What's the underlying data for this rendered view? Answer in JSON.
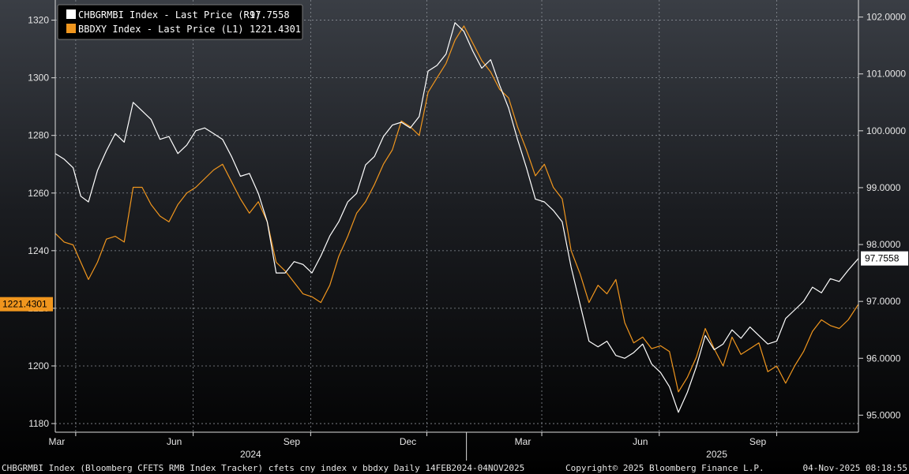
{
  "chart_data": {
    "type": "line",
    "x_range": [
      "2024-02-14",
      "2025-11-04"
    ],
    "x_ticks": [
      {
        "label": "Mar",
        "date": "2024-03-01"
      },
      {
        "label": "Jun",
        "date": "2024-06-01"
      },
      {
        "label": "Sep",
        "date": "2024-09-01"
      },
      {
        "label": "Dec",
        "date": "2024-12-01"
      },
      {
        "label": "Mar",
        "date": "2025-03-01"
      },
      {
        "label": "Jun",
        "date": "2025-06-01"
      },
      {
        "label": "Sep",
        "date": "2025-09-01"
      }
    ],
    "year_labels": [
      {
        "label": "2024",
        "date": "2024-07-16"
      },
      {
        "label": "2025",
        "date": "2025-07-16"
      }
    ],
    "left_axis": {
      "ticks": [
        "1180",
        "1200",
        "1220",
        "1240",
        "1260",
        "1280",
        "1300",
        "1320"
      ],
      "ylim": [
        1177,
        1327
      ]
    },
    "right_axis": {
      "ticks": [
        "95.0000",
        "96.0000",
        "97.0000",
        "98.0000",
        "99.0000",
        "100.0000",
        "101.0000",
        "102.0000"
      ],
      "ylim": [
        94.7,
        102.3
      ]
    },
    "grid": true,
    "legend_position": "top-left",
    "series": [
      {
        "name": "CHBGRMBI Index - Last Price (R1)",
        "last_value": "97.7558",
        "color": "#ffffff",
        "axis": "right",
        "points": [
          [
            "2024-02-14",
            99.6
          ],
          [
            "2024-02-21",
            99.5
          ],
          [
            "2024-02-28",
            99.35
          ],
          [
            "2024-03-05",
            98.85
          ],
          [
            "2024-03-11",
            98.75
          ],
          [
            "2024-03-18",
            99.3
          ],
          [
            "2024-03-25",
            99.65
          ],
          [
            "2024-04-01",
            99.95
          ],
          [
            "2024-04-08",
            99.8
          ],
          [
            "2024-04-15",
            100.5
          ],
          [
            "2024-04-22",
            100.35
          ],
          [
            "2024-04-29",
            100.2
          ],
          [
            "2024-05-06",
            99.85
          ],
          [
            "2024-05-13",
            99.9
          ],
          [
            "2024-05-20",
            99.6
          ],
          [
            "2024-05-27",
            99.75
          ],
          [
            "2024-06-03",
            100.0
          ],
          [
            "2024-06-10",
            100.05
          ],
          [
            "2024-06-17",
            99.95
          ],
          [
            "2024-06-24",
            99.85
          ],
          [
            "2024-07-01",
            99.55
          ],
          [
            "2024-07-08",
            99.2
          ],
          [
            "2024-07-15",
            99.25
          ],
          [
            "2024-07-22",
            98.9
          ],
          [
            "2024-07-29",
            98.4
          ],
          [
            "2024-08-05",
            97.5
          ],
          [
            "2024-08-12",
            97.5
          ],
          [
            "2024-08-19",
            97.7
          ],
          [
            "2024-08-26",
            97.65
          ],
          [
            "2024-09-02",
            97.5
          ],
          [
            "2024-09-09",
            97.8
          ],
          [
            "2024-09-16",
            98.15
          ],
          [
            "2024-09-23",
            98.4
          ],
          [
            "2024-09-30",
            98.75
          ],
          [
            "2024-10-07",
            98.9
          ],
          [
            "2024-10-14",
            99.4
          ],
          [
            "2024-10-21",
            99.55
          ],
          [
            "2024-10-28",
            99.9
          ],
          [
            "2024-11-04",
            100.1
          ],
          [
            "2024-11-11",
            100.15
          ],
          [
            "2024-11-18",
            100.05
          ],
          [
            "2024-11-25",
            100.25
          ],
          [
            "2024-12-02",
            101.05
          ],
          [
            "2024-12-09",
            101.15
          ],
          [
            "2024-12-16",
            101.35
          ],
          [
            "2024-12-23",
            101.9
          ],
          [
            "2024-12-30",
            101.75
          ],
          [
            "2025-01-06",
            101.4
          ],
          [
            "2025-01-13",
            101.1
          ],
          [
            "2025-01-20",
            101.25
          ],
          [
            "2025-01-27",
            100.8
          ],
          [
            "2025-02-03",
            100.4
          ],
          [
            "2025-02-10",
            99.85
          ],
          [
            "2025-02-17",
            99.35
          ],
          [
            "2025-02-24",
            98.8
          ],
          [
            "2025-03-03",
            98.75
          ],
          [
            "2025-03-10",
            98.6
          ],
          [
            "2025-03-17",
            98.4
          ],
          [
            "2025-03-24",
            97.6
          ],
          [
            "2025-03-31",
            96.95
          ],
          [
            "2025-04-07",
            96.3
          ],
          [
            "2025-04-14",
            96.2
          ],
          [
            "2025-04-21",
            96.3
          ],
          [
            "2025-04-28",
            96.05
          ],
          [
            "2025-05-05",
            96.0
          ],
          [
            "2025-05-12",
            96.1
          ],
          [
            "2025-05-19",
            96.25
          ],
          [
            "2025-05-26",
            95.9
          ],
          [
            "2025-06-02",
            95.75
          ],
          [
            "2025-06-09",
            95.5
          ],
          [
            "2025-06-16",
            95.05
          ],
          [
            "2025-06-23",
            95.4
          ],
          [
            "2025-06-30",
            95.85
          ],
          [
            "2025-07-07",
            96.4
          ],
          [
            "2025-07-14",
            96.15
          ],
          [
            "2025-07-21",
            96.25
          ],
          [
            "2025-07-28",
            96.5
          ],
          [
            "2025-08-04",
            96.35
          ],
          [
            "2025-08-11",
            96.55
          ],
          [
            "2025-08-18",
            96.4
          ],
          [
            "2025-08-25",
            96.25
          ],
          [
            "2025-09-01",
            96.3
          ],
          [
            "2025-09-08",
            96.7
          ],
          [
            "2025-09-15",
            96.85
          ],
          [
            "2025-09-22",
            97.0
          ],
          [
            "2025-09-29",
            97.25
          ],
          [
            "2025-10-06",
            97.15
          ],
          [
            "2025-10-13",
            97.4
          ],
          [
            "2025-10-20",
            97.35
          ],
          [
            "2025-10-27",
            97.55
          ],
          [
            "2025-11-04",
            97.7558
          ]
        ]
      },
      {
        "name": "BBDXY Index - Last Price (L1)",
        "last_value": "1221.4301",
        "color": "#f0961e",
        "axis": "left",
        "points": [
          [
            "2024-02-14",
            1246
          ],
          [
            "2024-02-21",
            1243
          ],
          [
            "2024-02-28",
            1242
          ],
          [
            "2024-03-05",
            1236
          ],
          [
            "2024-03-11",
            1230
          ],
          [
            "2024-03-18",
            1236
          ],
          [
            "2024-03-25",
            1244
          ],
          [
            "2024-04-01",
            1245
          ],
          [
            "2024-04-08",
            1243
          ],
          [
            "2024-04-15",
            1262
          ],
          [
            "2024-04-22",
            1262
          ],
          [
            "2024-04-29",
            1256
          ],
          [
            "2024-05-06",
            1252
          ],
          [
            "2024-05-13",
            1250
          ],
          [
            "2024-05-20",
            1256
          ],
          [
            "2024-05-27",
            1260
          ],
          [
            "2024-06-03",
            1262
          ],
          [
            "2024-06-10",
            1265
          ],
          [
            "2024-06-17",
            1268
          ],
          [
            "2024-06-24",
            1270
          ],
          [
            "2024-07-01",
            1264
          ],
          [
            "2024-07-08",
            1258
          ],
          [
            "2024-07-15",
            1253
          ],
          [
            "2024-07-22",
            1257
          ],
          [
            "2024-07-29",
            1250
          ],
          [
            "2024-08-05",
            1236
          ],
          [
            "2024-08-12",
            1233
          ],
          [
            "2024-08-19",
            1229
          ],
          [
            "2024-08-26",
            1225
          ],
          [
            "2024-09-02",
            1224
          ],
          [
            "2024-09-09",
            1222
          ],
          [
            "2024-09-16",
            1228
          ],
          [
            "2024-09-23",
            1238
          ],
          [
            "2024-09-30",
            1245
          ],
          [
            "2024-10-07",
            1253
          ],
          [
            "2024-10-14",
            1257
          ],
          [
            "2024-10-21",
            1263
          ],
          [
            "2024-10-28",
            1270
          ],
          [
            "2024-11-04",
            1275
          ],
          [
            "2024-11-11",
            1285
          ],
          [
            "2024-11-18",
            1283
          ],
          [
            "2024-11-25",
            1280
          ],
          [
            "2024-12-02",
            1295
          ],
          [
            "2024-12-09",
            1300
          ],
          [
            "2024-12-16",
            1305
          ],
          [
            "2024-12-23",
            1313
          ],
          [
            "2024-12-30",
            1318
          ],
          [
            "2025-01-06",
            1312
          ],
          [
            "2025-01-13",
            1306
          ],
          [
            "2025-01-20",
            1302
          ],
          [
            "2025-01-27",
            1296
          ],
          [
            "2025-02-03",
            1293
          ],
          [
            "2025-02-10",
            1283
          ],
          [
            "2025-02-17",
            1275
          ],
          [
            "2025-02-24",
            1266
          ],
          [
            "2025-03-03",
            1270
          ],
          [
            "2025-03-10",
            1262
          ],
          [
            "2025-03-17",
            1258
          ],
          [
            "2025-03-24",
            1240
          ],
          [
            "2025-03-31",
            1232
          ],
          [
            "2025-04-07",
            1222
          ],
          [
            "2025-04-14",
            1228
          ],
          [
            "2025-04-21",
            1225
          ],
          [
            "2025-04-28",
            1230
          ],
          [
            "2025-05-05",
            1215
          ],
          [
            "2025-05-12",
            1208
          ],
          [
            "2025-05-19",
            1210
          ],
          [
            "2025-05-26",
            1206
          ],
          [
            "2025-06-02",
            1207
          ],
          [
            "2025-06-09",
            1205
          ],
          [
            "2025-06-16",
            1191
          ],
          [
            "2025-06-23",
            1196
          ],
          [
            "2025-06-30",
            1203
          ],
          [
            "2025-07-07",
            1213
          ],
          [
            "2025-07-14",
            1206
          ],
          [
            "2025-07-21",
            1200
          ],
          [
            "2025-07-28",
            1210
          ],
          [
            "2025-08-04",
            1204
          ],
          [
            "2025-08-11",
            1206
          ],
          [
            "2025-08-18",
            1208
          ],
          [
            "2025-08-25",
            1198
          ],
          [
            "2025-09-01",
            1200
          ],
          [
            "2025-09-08",
            1194
          ],
          [
            "2025-09-15",
            1200
          ],
          [
            "2025-09-22",
            1205
          ],
          [
            "2025-09-29",
            1212
          ],
          [
            "2025-10-06",
            1216
          ],
          [
            "2025-10-13",
            1214
          ],
          [
            "2025-10-20",
            1213
          ],
          [
            "2025-10-27",
            1216
          ],
          [
            "2025-11-04",
            1221.4301
          ]
        ]
      }
    ],
    "footer_left": "CHBGRMBI Index (Bloomberg CFETS RMB Index Tracker) cfets cny index v bbdxy Daily 14FEB2024-04NOV2025",
    "footer_center": "Copyright© 2025 Bloomberg Finance L.P.",
    "footer_right": "04-Nov-2025 08:18:55"
  }
}
